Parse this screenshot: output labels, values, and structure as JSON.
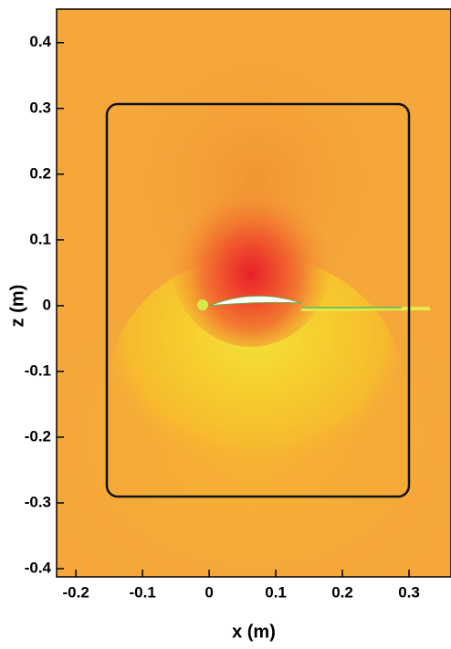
{
  "chart_data": {
    "type": "contour",
    "x_label": "x (m)",
    "y_label": "z (m)",
    "xlim": [
      -0.229,
      0.363
    ],
    "ylim": [
      -0.4125,
      0.451
    ],
    "xticks": [
      -0.2,
      -0.1,
      0,
      0.1,
      0.2,
      0.3
    ],
    "yticks": [
      -0.4,
      -0.3,
      -0.2,
      -0.1,
      0,
      0.1,
      0.2,
      0.3,
      0.4
    ]
  }
}
